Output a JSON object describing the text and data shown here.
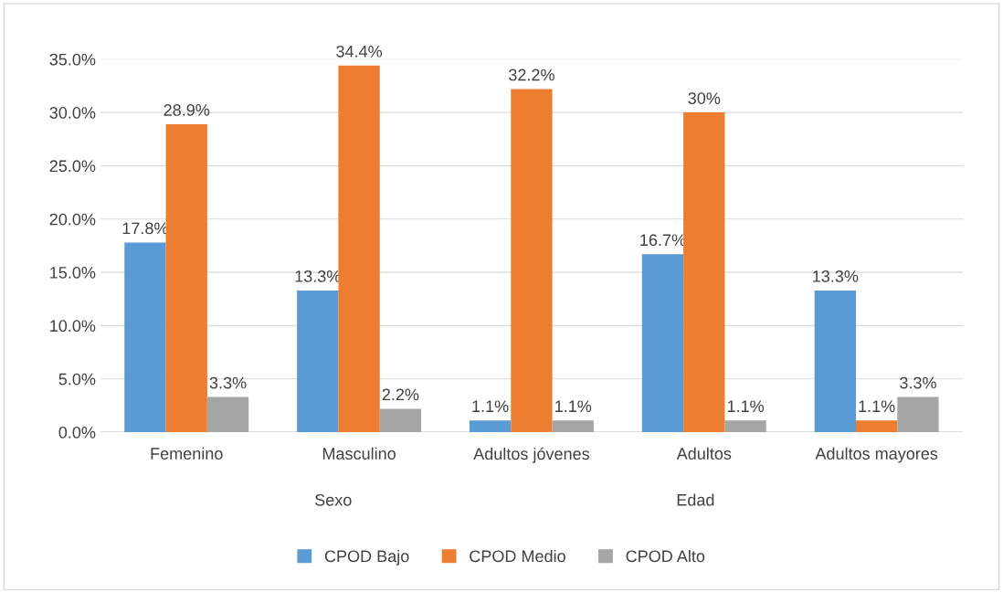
{
  "chart_data": {
    "type": "bar",
    "categories": [
      "Femenino",
      "Masculino",
      "Adultos jóvenes",
      "Adultos",
      "Adultos mayores"
    ],
    "series": [
      {
        "name": "CPOD Bajo",
        "color": "#5b9bd5",
        "values": [
          17.8,
          13.3,
          1.1,
          16.7,
          13.3
        ],
        "value_labels": [
          "17.8%",
          "13.3%",
          "1.1%",
          "16.7%",
          "13.3%"
        ]
      },
      {
        "name": "CPOD Medio",
        "color": "#ed7d31",
        "values": [
          28.9,
          34.4,
          32.2,
          30,
          1.1
        ],
        "value_labels": [
          "28.9%",
          "34.4%",
          "32.2%",
          "30%",
          "1.1%"
        ]
      },
      {
        "name": "CPOD Alto",
        "color": "#a5a5a5",
        "values": [
          3.3,
          2.2,
          1.1,
          1.1,
          3.3
        ],
        "value_labels": [
          "3.3%",
          "2.2%",
          "1.1%",
          "1.1%",
          "3.3%"
        ]
      }
    ],
    "ylim": [
      0,
      35
    ],
    "yticks": [
      {
        "value": 0,
        "label": "0.0%"
      },
      {
        "value": 5,
        "label": "5.0%"
      },
      {
        "value": 10,
        "label": "10.0%"
      },
      {
        "value": 15,
        "label": "15.0%"
      },
      {
        "value": 20,
        "label": "20.0%"
      },
      {
        "value": 25,
        "label": "25.0%"
      },
      {
        "value": 30,
        "label": "30.0%"
      },
      {
        "value": 35,
        "label": "35.0%"
      }
    ],
    "annotations": [
      "Sexo",
      "Edad"
    ],
    "grid": "y",
    "legend": "bottom"
  }
}
